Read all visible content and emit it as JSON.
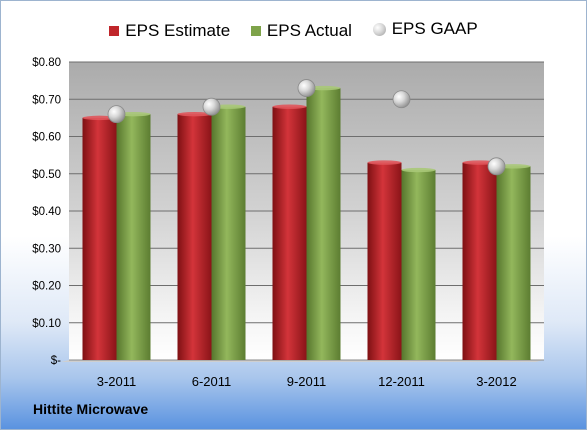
{
  "chart_data": {
    "type": "bar",
    "categories": [
      "3-2011",
      "6-2011",
      "9-2011",
      "12-2011",
      "3-2012"
    ],
    "series": [
      {
        "name": "EPS Estimate",
        "kind": "bar",
        "color": "#c0262b",
        "values": [
          0.65,
          0.66,
          0.68,
          0.53,
          0.53
        ]
      },
      {
        "name": "EPS Actual",
        "kind": "bar",
        "color": "#7ea34a",
        "values": [
          0.66,
          0.68,
          0.73,
          0.51,
          0.52
        ]
      },
      {
        "name": "EPS GAAP",
        "kind": "marker",
        "color": "#b8b8b8",
        "values": [
          0.66,
          0.68,
          0.73,
          0.7,
          0.52
        ]
      }
    ],
    "ylim": [
      0,
      0.8
    ],
    "yticks": [
      0,
      0.1,
      0.2,
      0.3,
      0.4,
      0.5,
      0.6,
      0.7,
      0.8
    ],
    "ytick_labels": [
      "$-",
      "$0.10",
      "$0.20",
      "$0.30",
      "$0.40",
      "$0.50",
      "$0.60",
      "$0.70",
      "$0.80"
    ],
    "grid": true,
    "legend_position": "top"
  },
  "legend": {
    "estimate": "EPS Estimate",
    "actual": "EPS Actual",
    "gaap": "EPS GAAP"
  },
  "footer": "Hittite Microwave"
}
